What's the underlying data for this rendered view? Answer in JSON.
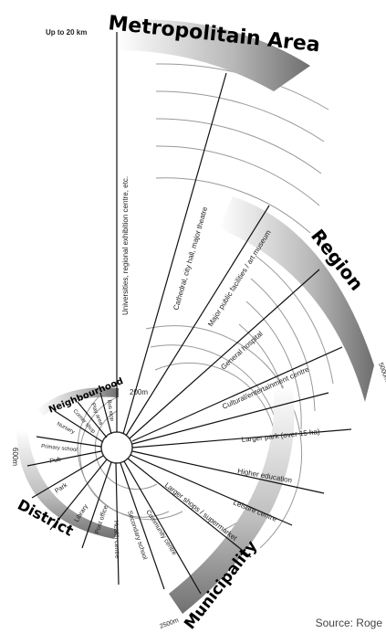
{
  "titles": {
    "metropolitan": "Metropolitain Area",
    "region": "Region",
    "municipality": "Municipality",
    "district": "District",
    "neighbourhood": "Neighbourhood"
  },
  "distances": {
    "up_to": "Up to 20 km",
    "d200": "200m",
    "d600": "600m",
    "d2500": "2500m",
    "d5000": "5000m"
  },
  "facilities": {
    "universities": "Universities, regional exhibition centre, etc.",
    "cathedral": "Cathedral, city hall, major theatre",
    "public": "Major public facilities / art museum",
    "hospital": "General hospital",
    "cultural": "Cultural/entertainment centre",
    "park": "Larger park (over 15 ha)",
    "higher_ed": "Higher education",
    "leisure": "Leisure centre",
    "shops": "Larger shops / supermarket",
    "secondary": "Secondary school",
    "community": "Community centre",
    "health": "Health centre",
    "post": "Post office",
    "library": "Library",
    "park_small": "Park",
    "pub": "Pub",
    "school": "Primary school",
    "nursery": "Nursery",
    "corner": "Corner shop",
    "play": "Play area",
    "bus": "Bus stop"
  },
  "source": "Source: Roge"
}
